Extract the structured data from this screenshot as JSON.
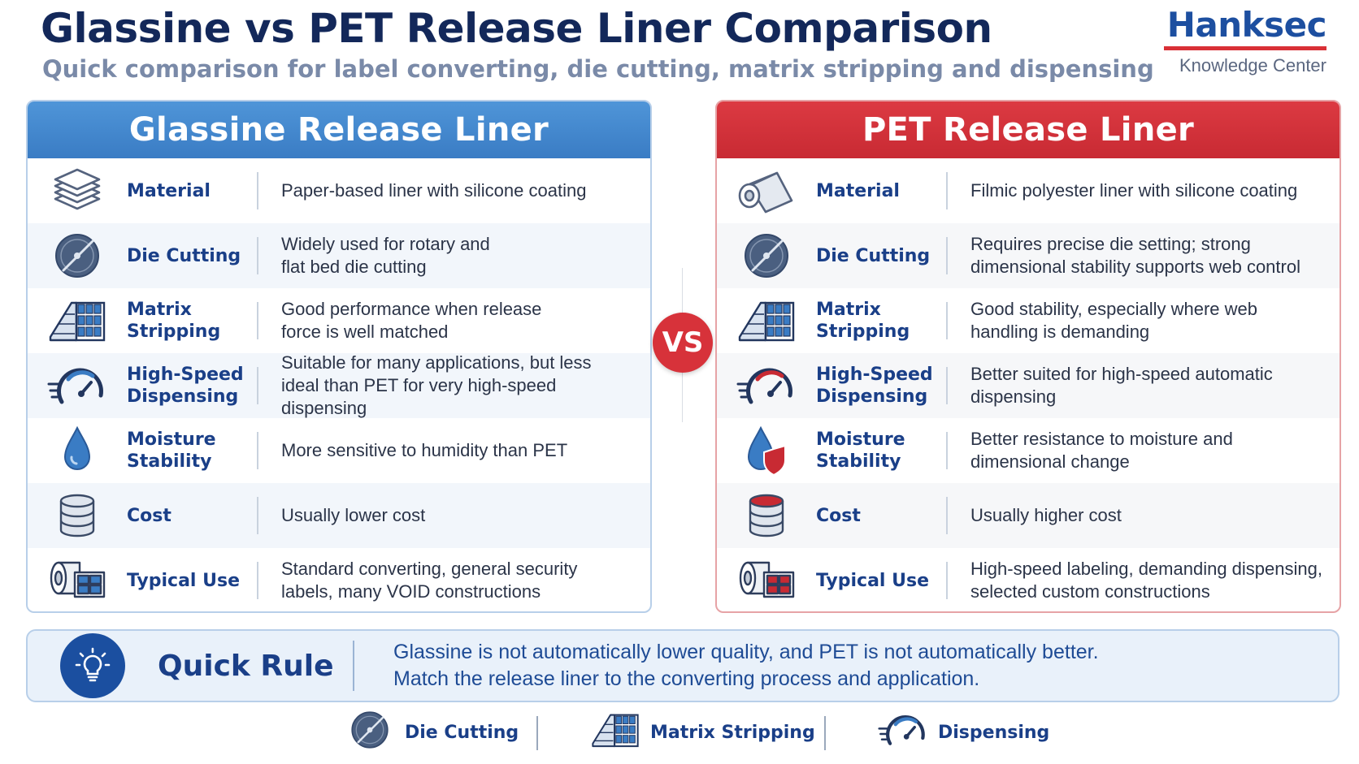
{
  "header": {
    "title": "Glassine vs PET Release Liner Comparison",
    "subtitle": "Quick comparison for label converting, die cutting, matrix stripping and dispensing"
  },
  "brand": {
    "name": "Hanksec",
    "tagline": "Knowledge Center"
  },
  "colors": {
    "glassine_blue": "#3a7cc4",
    "pet_red": "#c82a33",
    "navy": "#13285a"
  },
  "glassine": {
    "title": "Glassine Release Liner",
    "rows": [
      {
        "icon": "layers-icon",
        "label": "Material",
        "text": "Paper-based liner with silicone coating"
      },
      {
        "icon": "die-cutter-icon",
        "label": "Die Cutting",
        "text": "Widely used for rotary and\nflat bed die cutting"
      },
      {
        "icon": "matrix-grid-icon",
        "label": "Matrix\nStripping",
        "text": "Good performance when release\nforce is well matched"
      },
      {
        "icon": "speedometer-icon",
        "label": "High-Speed\nDispensing",
        "text": "Suitable for many applications, but less\nideal than PET for very high-speed dispensing"
      },
      {
        "icon": "water-drop-icon",
        "label": "Moisture\nStability",
        "text": "More sensitive to humidity than PET"
      },
      {
        "icon": "coin-stack-icon",
        "label": "Cost",
        "text": "Usually lower cost"
      },
      {
        "icon": "label-roll-icon",
        "label": "Typical Use",
        "text": "Standard converting, general security\nlabels, many VOID constructions"
      }
    ]
  },
  "pet": {
    "title": "PET  Release Liner",
    "rows": [
      {
        "icon": "film-roll-icon",
        "label": "Material",
        "text": "Filmic polyester liner with silicone coating"
      },
      {
        "icon": "die-cutter-icon",
        "label": "Die Cutting",
        "text": "Requires precise die setting; strong\ndimensional stability supports web control"
      },
      {
        "icon": "matrix-grid-icon",
        "label": "Matrix\nStripping",
        "text": "Good stability, especially where web\nhandling is demanding"
      },
      {
        "icon": "speedometer-icon",
        "label": "High-Speed\nDispensing",
        "text": "Better suited for high-speed automatic\ndispensing"
      },
      {
        "icon": "drop-shield-icon",
        "label": "Moisture\nStability",
        "text": "Better resistance to moisture and\ndimensional change"
      },
      {
        "icon": "coin-stack-icon",
        "label": "Cost",
        "text": "Usually higher cost"
      },
      {
        "icon": "label-roll-icon",
        "label": "Typical Use",
        "text": "High-speed labeling, demanding dispensing,\nselected custom constructions"
      }
    ]
  },
  "vs_label": "VS",
  "quick_rule": {
    "title": "Quick Rule",
    "text": "Glassine is not automatically lower quality, and PET is not automatically better.\nMatch the release liner to the converting process and application."
  },
  "legend": [
    {
      "icon": "die-cutter-icon",
      "label": "Die Cutting"
    },
    {
      "icon": "matrix-grid-icon",
      "label": "Matrix Stripping"
    },
    {
      "icon": "speedometer-icon",
      "label": "Dispensing"
    }
  ]
}
